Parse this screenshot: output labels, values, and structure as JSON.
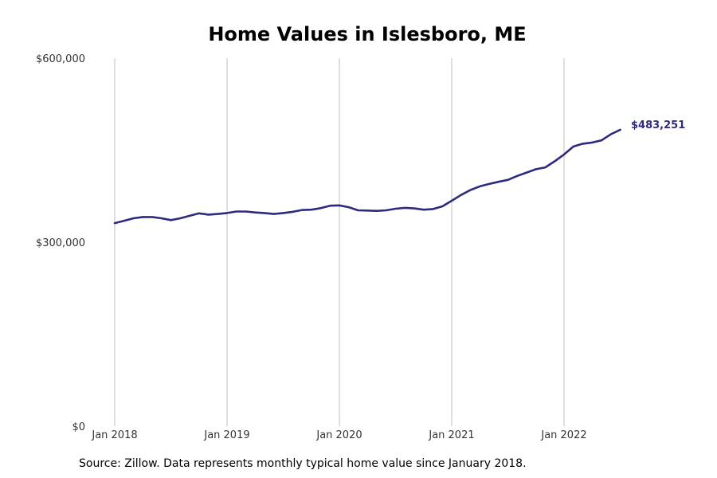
{
  "chart_data": {
    "type": "line",
    "title": "Home Values in Islesboro, ME",
    "xlabel": "",
    "ylabel": "",
    "x_ticks": [
      "Jan 2018",
      "Jan 2019",
      "Jan 2020",
      "Jan 2021",
      "Jan 2022"
    ],
    "y_ticks": [
      "$0",
      "$300,000",
      "$600,000"
    ],
    "ylim": [
      0,
      600000
    ],
    "grid": "vertical",
    "line_color": "#2e2a7e",
    "end_label": "$483,251",
    "series": [
      {
        "values": [
          331000,
          335000,
          339000,
          341000,
          341000,
          339000,
          336000,
          339000,
          343000,
          347000,
          345000,
          346000,
          347500,
          350000,
          350000,
          348500,
          347500,
          346000,
          347500,
          349500,
          352500,
          353000,
          355500,
          359500,
          360000,
          357000,
          352000,
          351500,
          351000,
          352000,
          354500,
          356000,
          355000,
          353000,
          354000,
          358500,
          367500,
          377000,
          385000,
          391000,
          395000,
          398500,
          401500,
          408000,
          413500,
          419000,
          422000,
          432000,
          443000,
          456000,
          460500,
          462500,
          466000,
          476000,
          483251
        ]
      }
    ]
  },
  "footer": {
    "source": "Source: Zillow. Data represents monthly typical home value since January 2018."
  }
}
